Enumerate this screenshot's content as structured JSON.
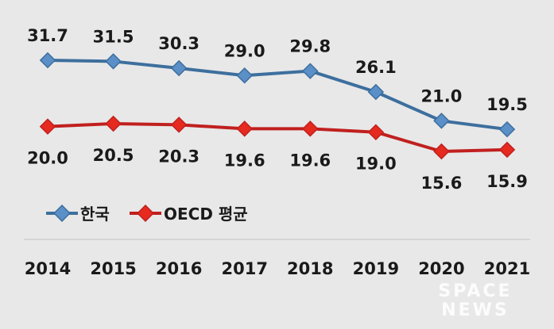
{
  "chart_data": {
    "type": "line",
    "categories": [
      "2014",
      "2015",
      "2016",
      "2017",
      "2018",
      "2019",
      "2020",
      "2021"
    ],
    "series": [
      {
        "name": "한국",
        "color": "#3d6f9e",
        "marker_color": "#5b8fc7",
        "values": [
          31.7,
          31.5,
          30.3,
          29.0,
          29.8,
          26.1,
          21.0,
          19.5
        ]
      },
      {
        "name": "OECD 평균",
        "color": "#c0201f",
        "marker_color": "#e62a1f",
        "values": [
          20.0,
          20.5,
          20.3,
          19.6,
          19.6,
          19.0,
          15.6,
          15.9
        ]
      }
    ],
    "value_labels": [
      [
        "31.7",
        "31.5",
        "30.3",
        "29.0",
        "29.8",
        "26.1",
        "21.0",
        "19.5"
      ],
      [
        "20.0",
        "20.5",
        "20.3",
        "19.6",
        "19.6",
        "19.0",
        "15.6",
        "15.9"
      ]
    ],
    "legend_position": "left, below lines",
    "grid": false
  },
  "watermark": {
    "line1": "SPACE",
    "line2": "NEWS"
  }
}
